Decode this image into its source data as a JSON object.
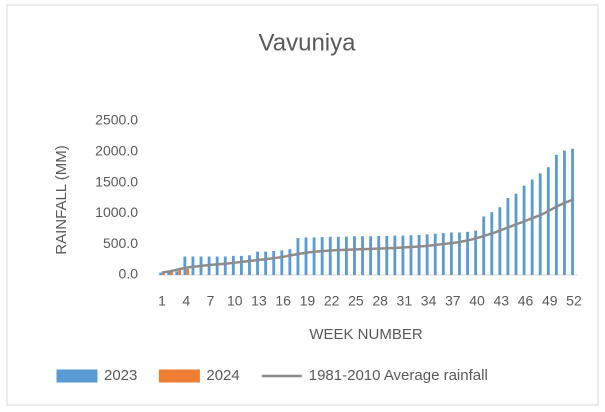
{
  "chart_data": {
    "type": "bar",
    "title": "Vavuniya",
    "xlabel": "WEEK NUMBER",
    "ylabel": "RAINFALL (MM)",
    "categories": [
      "1",
      null,
      null,
      "4",
      null,
      null,
      "7",
      null,
      null,
      "10",
      null,
      null,
      "13",
      null,
      null,
      "16",
      null,
      null,
      "19",
      null,
      null,
      "22",
      null,
      null,
      "25",
      null,
      null,
      "28",
      null,
      null,
      "31",
      null,
      null,
      "34",
      null,
      null,
      "37",
      null,
      null,
      "40",
      null,
      null,
      "43",
      null,
      null,
      "46",
      null,
      null,
      "49",
      null,
      null,
      "52"
    ],
    "series": [
      {
        "name": "2023",
        "type": "bar",
        "color": "#5b9bd5",
        "values": [
          40,
          45,
          60,
          300,
          300,
          300,
          300,
          300,
          300,
          310,
          310,
          320,
          380,
          380,
          390,
          400,
          420,
          600,
          610,
          610,
          615,
          620,
          620,
          625,
          630,
          630,
          630,
          635,
          635,
          640,
          640,
          645,
          650,
          660,
          670,
          680,
          690,
          690,
          700,
          720,
          950,
          1020,
          1100,
          1250,
          1320,
          1450,
          1550,
          1650,
          1750,
          1950,
          2020,
          2050
        ]
      },
      {
        "name": "2024",
        "type": "bar",
        "color": "#ed7d31",
        "values": [
          30,
          50,
          80,
          100,
          null,
          null,
          null,
          null,
          null,
          null,
          null,
          null,
          null,
          null,
          null,
          null,
          null,
          null,
          null,
          null,
          null,
          null,
          null,
          null,
          null,
          null,
          null,
          null,
          null,
          null,
          null,
          null,
          null,
          null,
          null,
          null,
          null,
          null,
          null,
          null,
          null,
          null,
          null,
          null,
          null,
          null,
          null,
          null,
          null,
          null,
          null,
          null
        ]
      },
      {
        "name": "1981-2010 Average rainfall",
        "type": "line",
        "color": "#8c8c8c",
        "values": [
          40,
          60,
          90,
          120,
          135,
          150,
          165,
          175,
          185,
          200,
          215,
          230,
          245,
          260,
          275,
          295,
          320,
          345,
          365,
          380,
          390,
          398,
          405,
          410,
          415,
          420,
          425,
          430,
          435,
          440,
          448,
          455,
          465,
          475,
          490,
          505,
          520,
          540,
          565,
          600,
          640,
          680,
          730,
          780,
          830,
          880,
          930,
          980,
          1050,
          1120,
          1180,
          1230
        ]
      }
    ],
    "ylim": [
      0,
      2500
    ],
    "yticks": [
      {
        "value": 0,
        "label": "0.0"
      },
      {
        "value": 500,
        "label": "500.0"
      },
      {
        "value": 1000,
        "label": "1000.0"
      },
      {
        "value": 1500,
        "label": "1500.0"
      },
      {
        "value": 2000,
        "label": "2000.0"
      },
      {
        "value": 2500,
        "label": "2500.0"
      }
    ],
    "grid": false,
    "legend": "bottom"
  }
}
